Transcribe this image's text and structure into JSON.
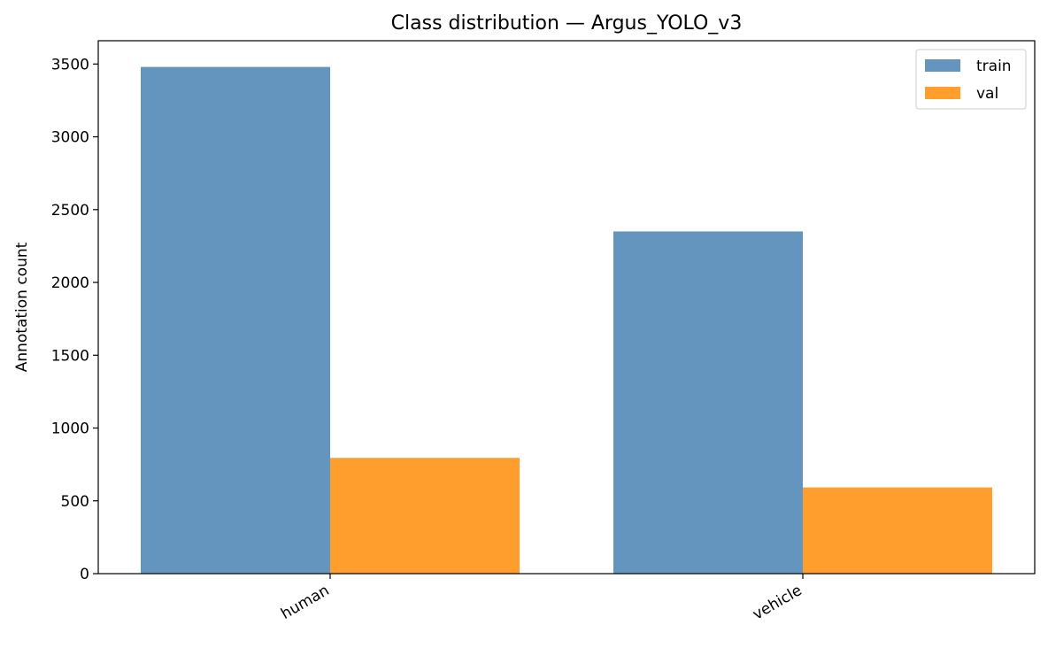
{
  "chart_data": {
    "type": "bar",
    "title": "Class distribution — Argus_YOLO_v3",
    "xlabel": "",
    "ylabel": "Annotation count",
    "categories": [
      "human",
      "vehicle"
    ],
    "series": [
      {
        "name": "train",
        "values": [
          3480,
          2350
        ],
        "color": "#6495bf"
      },
      {
        "name": "val",
        "values": [
          795,
          592
        ],
        "color": "#ff9e2c"
      }
    ],
    "ylim": [
      0,
      3660
    ],
    "yticks": [
      0,
      500,
      1000,
      1500,
      2000,
      2500,
      3000,
      3500
    ],
    "grid": false,
    "legend_position": "top-right",
    "xtick_rotation_deg": 30
  }
}
